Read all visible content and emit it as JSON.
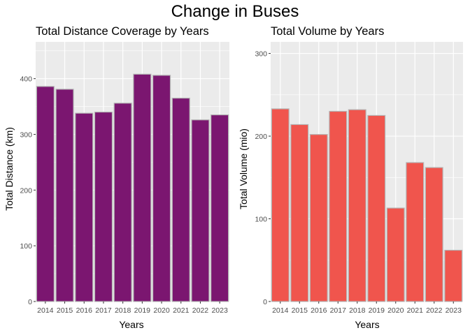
{
  "figure": {
    "title": "Change in Buses"
  },
  "chart_data": [
    {
      "type": "bar",
      "title": "Total Distance Coverage by Years",
      "xlabel": "Years",
      "ylabel": "Total Distance (km)",
      "categories": [
        "2014",
        "2015",
        "2016",
        "2017",
        "2018",
        "2019",
        "2020",
        "2021",
        "2022",
        "2023"
      ],
      "values": [
        386,
        381,
        338,
        340,
        356,
        408,
        406,
        365,
        326,
        335
      ],
      "ylim": [
        0,
        466
      ],
      "yticks": [
        0,
        100,
        200,
        300,
        400
      ],
      "bar_color": "#7b1670",
      "bar_outline": "#b4b4b4",
      "panel_background": "#ebebeb",
      "grid": true
    },
    {
      "type": "bar",
      "title": "Total Volume by Years",
      "xlabel": "Years",
      "ylabel": "Total Volume (mio)",
      "categories": [
        "2014",
        "2015",
        "2016",
        "2017",
        "2018",
        "2019",
        "2020",
        "2021",
        "2022",
        "2023"
      ],
      "values": [
        233,
        214,
        202,
        230,
        232,
        225,
        113,
        168,
        162,
        62
      ],
      "ylim": [
        0,
        314
      ],
      "yticks": [
        0,
        100,
        200,
        300
      ],
      "bar_color": "#f0554d",
      "bar_outline": "#b4b4b4",
      "panel_background": "#ebebeb",
      "grid": true
    }
  ]
}
